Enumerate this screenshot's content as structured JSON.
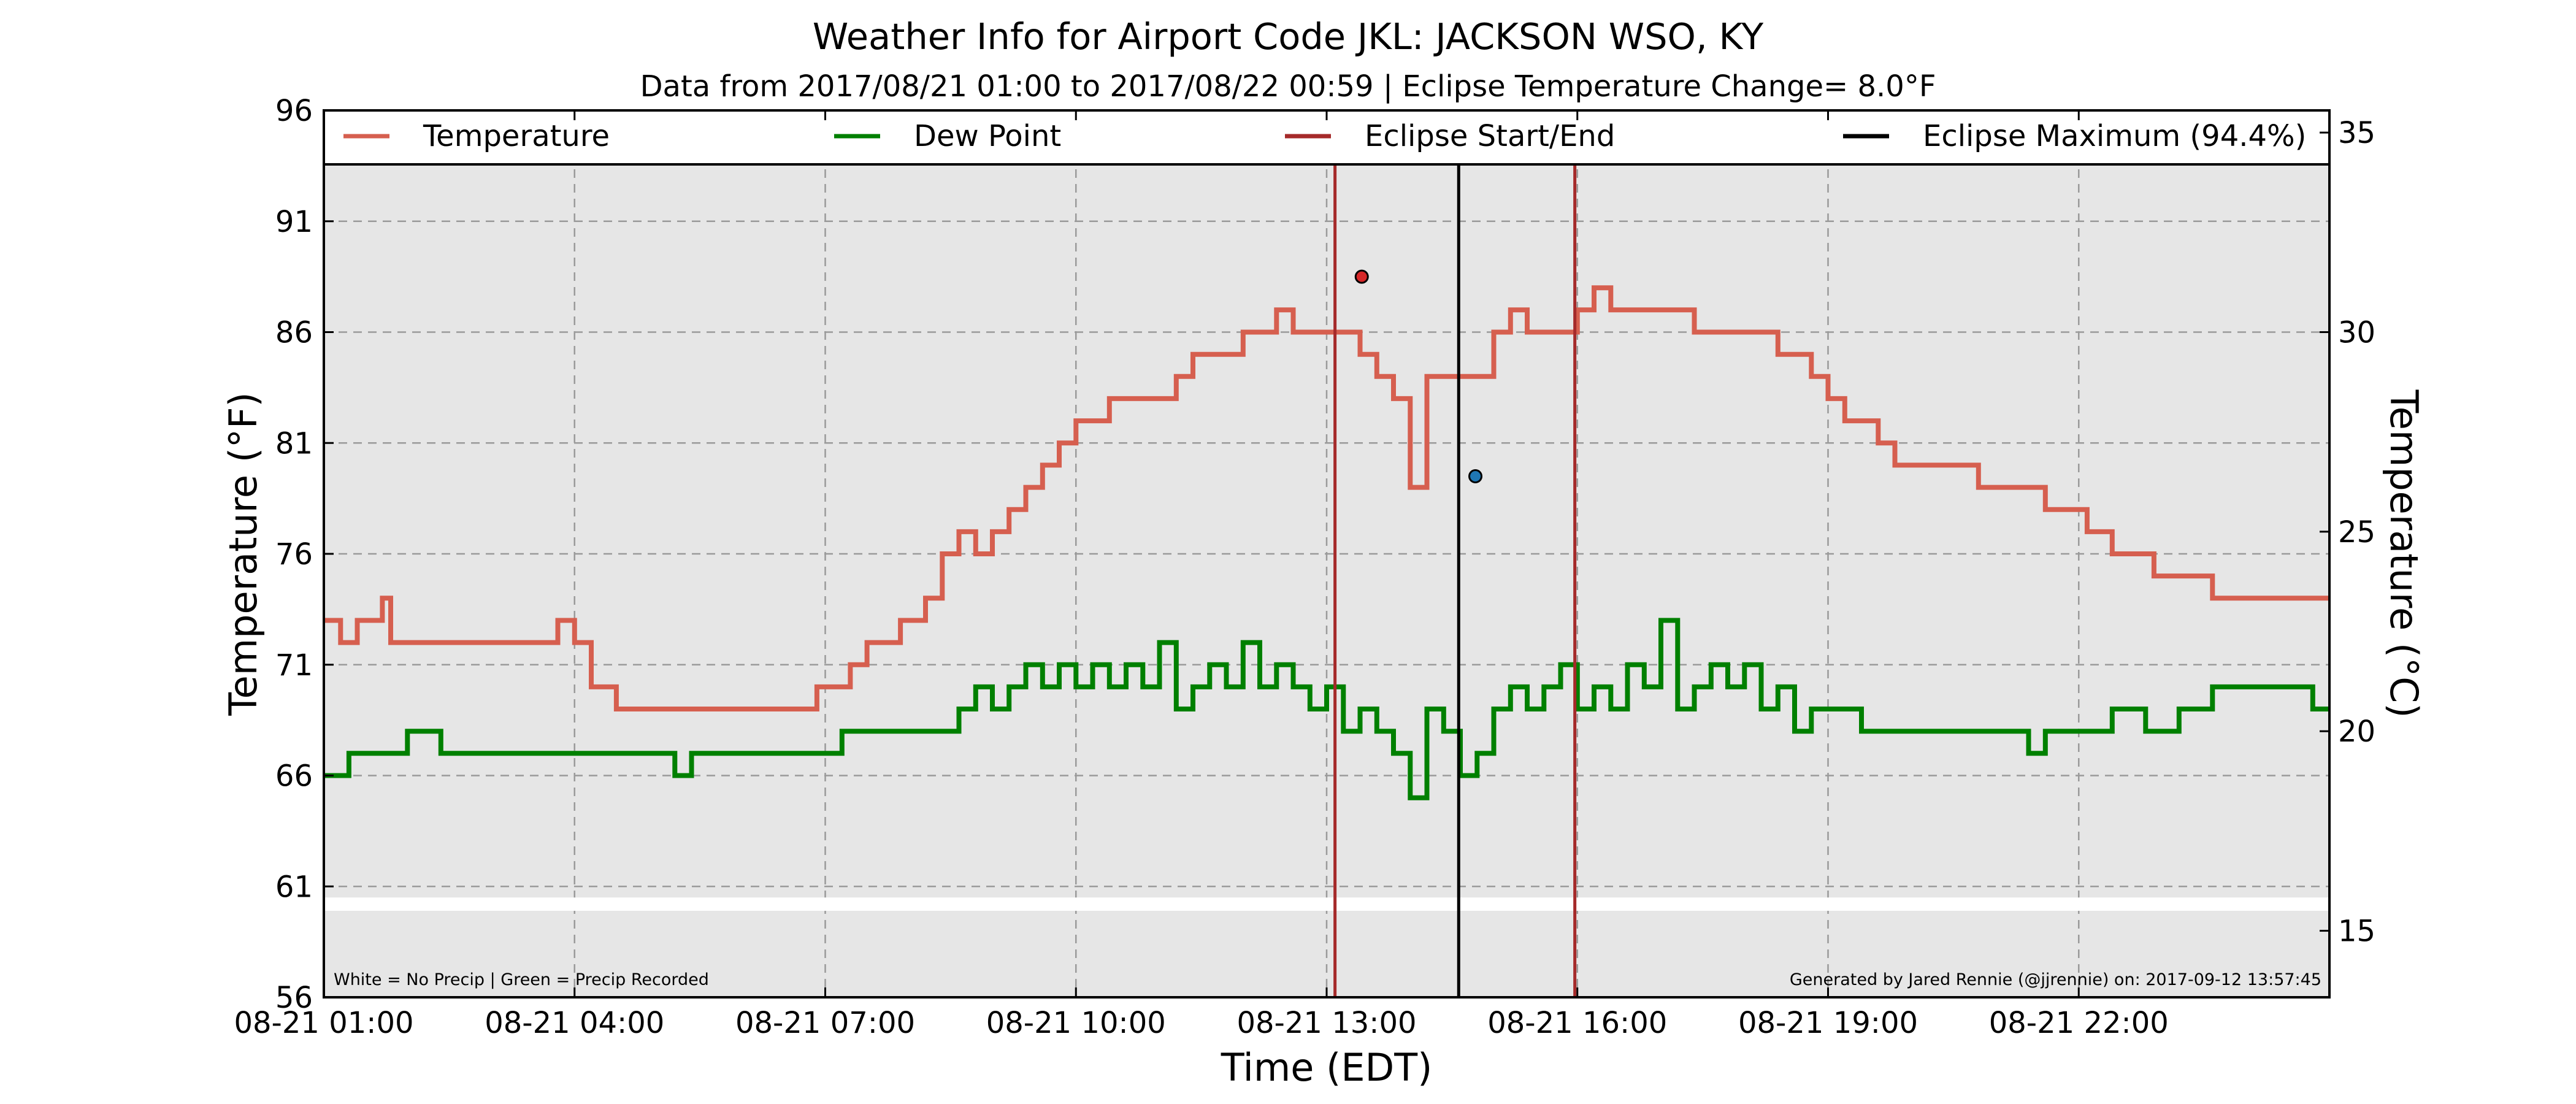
{
  "chart_data": {
    "type": "line",
    "title": "Weather Info for Airport Code JKL: JACKSON WSO, KY",
    "subtitle": "Data from 2017/08/21 01:00 to 2017/08/22 00:59 | Eclipse Temperature Change= 8.0°F",
    "xlabel": "Time (EDT)",
    "ylabel_left": "Temperature (°F)",
    "ylabel_right": "Temperature (°C)",
    "x_unit": "hour of 2017-08-21 (EDT)",
    "xlim": [
      1,
      25
    ],
    "ylim_left": [
      56,
      96
    ],
    "y_ticks_left": [
      56,
      61,
      66,
      71,
      76,
      81,
      86,
      91,
      96
    ],
    "y_ticks_right": [
      15,
      20,
      25,
      30,
      35
    ],
    "x_ticks": [
      {
        "x": 1,
        "label": "08-21 01:00"
      },
      {
        "x": 4,
        "label": "08-21 04:00"
      },
      {
        "x": 7,
        "label": "08-21 07:00"
      },
      {
        "x": 10,
        "label": "08-21 10:00"
      },
      {
        "x": 13,
        "label": "08-21 13:00"
      },
      {
        "x": 16,
        "label": "08-21 16:00"
      },
      {
        "x": 19,
        "label": "08-21 19:00"
      },
      {
        "x": 22,
        "label": "08-21 22:00"
      }
    ],
    "grid": true,
    "legend_position": "top",
    "legend": [
      {
        "label": "Temperature",
        "color": "#d65f4f"
      },
      {
        "label": "Dew Point",
        "color": "#008000"
      },
      {
        "label": "Eclipse Start/End",
        "color": "#a52a2a"
      },
      {
        "label": "Eclipse Maximum (94.4%)",
        "color": "#000000"
      }
    ],
    "series": [
      {
        "name": "Temperature",
        "color": "#d65f4f",
        "x": [
          1.0,
          1.2,
          1.4,
          1.5,
          1.7,
          1.8,
          2.0,
          2.2,
          2.5,
          2.8,
          3.0,
          3.3,
          3.6,
          3.8,
          4.0,
          4.2,
          4.5,
          4.8,
          5.0,
          5.1,
          5.2,
          5.3,
          5.4,
          5.6,
          6.0,
          6.4,
          6.7,
          6.9,
          7.0,
          7.3,
          7.5,
          7.7,
          7.9,
          8.0,
          8.2,
          8.4,
          8.6,
          8.8,
          9.0,
          9.2,
          9.4,
          9.6,
          9.8,
          10.0,
          10.2,
          10.4,
          10.6,
          10.8,
          11.0,
          11.2,
          11.4,
          11.6,
          11.8,
          12.0,
          12.2,
          12.4,
          12.6,
          12.8,
          13.0,
          13.2,
          13.4,
          13.6,
          13.8,
          14.0,
          14.2,
          14.4,
          14.5,
          14.8,
          15.0,
          15.2,
          15.4,
          15.6,
          15.8,
          16.0,
          16.2,
          16.4,
          16.6,
          16.8,
          17.0,
          17.2,
          17.4,
          17.6,
          17.8,
          18.0,
          18.2,
          18.4,
          18.6,
          18.8,
          19.0,
          19.2,
          19.4,
          19.6,
          19.8,
          20.0,
          20.2,
          20.4,
          20.6,
          20.8,
          21.0,
          21.3,
          21.6,
          21.9,
          22.1,
          22.4,
          22.6,
          22.9,
          23.1,
          23.4,
          23.6,
          23.9,
          24.2,
          24.5,
          24.8,
          25.0
        ],
        "y": [
          73,
          72,
          73,
          73,
          74,
          72,
          72,
          72,
          72,
          72,
          72,
          72,
          72,
          73,
          72,
          70,
          69,
          69,
          69,
          69,
          69,
          69,
          69,
          69,
          69,
          69,
          69,
          70,
          70,
          71,
          72,
          72,
          73,
          73,
          74,
          76,
          77,
          76,
          77,
          78,
          79,
          80,
          81,
          82,
          82,
          83,
          83,
          83,
          83,
          84,
          85,
          85,
          85,
          86,
          86,
          87,
          86,
          86,
          86,
          86,
          85,
          84,
          83,
          79,
          84,
          84,
          84,
          84,
          86,
          87,
          86,
          86,
          86,
          87,
          88,
          87,
          87,
          87,
          87,
          87,
          86,
          86,
          86,
          86,
          86,
          85,
          85,
          84,
          83,
          82,
          82,
          81,
          80,
          80,
          80,
          80,
          80,
          79,
          79,
          79,
          78,
          78,
          77,
          76,
          76,
          75,
          75,
          75,
          74,
          74,
          74,
          74,
          74,
          74
        ]
      },
      {
        "name": "Dew Point",
        "color": "#008000",
        "x": [
          1.0,
          1.3,
          1.6,
          2.0,
          2.4,
          2.8,
          3.2,
          3.6,
          4.0,
          4.4,
          4.8,
          5.2,
          5.4,
          5.8,
          6.2,
          6.6,
          7.0,
          7.2,
          7.6,
          8.0,
          8.4,
          8.6,
          8.8,
          9.0,
          9.2,
          9.4,
          9.6,
          9.8,
          10.0,
          10.2,
          10.4,
          10.6,
          10.8,
          11.0,
          11.2,
          11.4,
          11.6,
          11.8,
          12.0,
          12.2,
          12.4,
          12.6,
          12.8,
          13.0,
          13.2,
          13.4,
          13.6,
          13.8,
          14.0,
          14.2,
          14.4,
          14.6,
          14.8,
          15.0,
          15.2,
          15.4,
          15.6,
          15.8,
          16.0,
          16.2,
          16.4,
          16.6,
          16.8,
          17.0,
          17.2,
          17.4,
          17.6,
          17.8,
          18.0,
          18.2,
          18.4,
          18.6,
          18.8,
          19.0,
          19.4,
          19.8,
          20.2,
          20.6,
          21.0,
          21.4,
          21.6,
          22.0,
          22.4,
          22.8,
          23.2,
          23.6,
          24.0,
          24.4,
          24.8,
          25.0
        ],
        "y": [
          66,
          67,
          67,
          68,
          67,
          67,
          67,
          67,
          67,
          67,
          67,
          66,
          67,
          67,
          67,
          67,
          67,
          68,
          68,
          68,
          68,
          69,
          70,
          69,
          70,
          71,
          70,
          71,
          70,
          71,
          70,
          71,
          70,
          72,
          69,
          70,
          71,
          70,
          72,
          70,
          71,
          70,
          69,
          70,
          68,
          69,
          68,
          67,
          65,
          69,
          68,
          66,
          67,
          69,
          70,
          69,
          70,
          71,
          69,
          70,
          69,
          71,
          70,
          73,
          69,
          70,
          71,
          70,
          71,
          69,
          70,
          68,
          69,
          69,
          68,
          68,
          68,
          68,
          68,
          67,
          68,
          68,
          69,
          68,
          69,
          70,
          70,
          70,
          69,
          69
        ]
      }
    ],
    "vertical_lines": [
      {
        "name": "Eclipse Start/End",
        "x": 13.1,
        "color": "#a52a2a"
      },
      {
        "name": "Eclipse Maximum (94.4%)",
        "x": 14.58,
        "color": "#000000"
      },
      {
        "name": "Eclipse Start/End",
        "x": 15.97,
        "color": "#a52a2a"
      }
    ],
    "markers": [
      {
        "name": "eclipse-high-marker",
        "x": 13.42,
        "y": 88.5,
        "color": "#d62728"
      },
      {
        "name": "eclipse-low-marker",
        "x": 14.78,
        "y": 79.5,
        "color": "#1f77b4"
      }
    ],
    "precip_strip": {
      "colors": {
        "none": "#ffffff",
        "precip": "#008000"
      },
      "state": "none"
    },
    "annotations": {
      "left": "White = No Precip | Green = Precip Recorded",
      "right": "Generated by Jared Rennie (@jjrennie) on: 2017-09-12 13:57:45"
    }
  }
}
